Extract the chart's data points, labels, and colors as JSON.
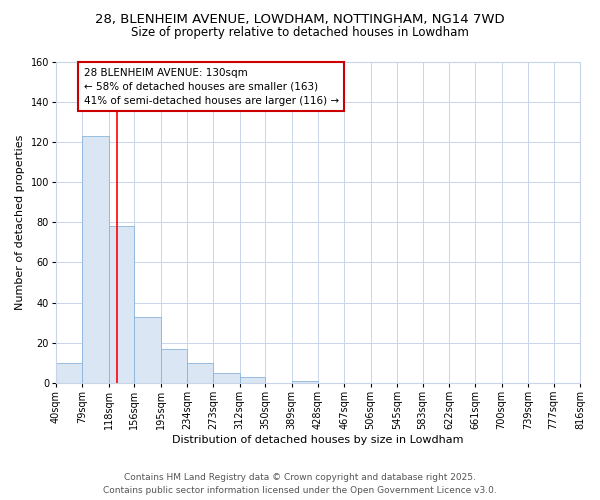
{
  "title_line1": "28, BLENHEIM AVENUE, LOWDHAM, NOTTINGHAM, NG14 7WD",
  "title_line2": "Size of property relative to detached houses in Lowdham",
  "xlabel": "Distribution of detached houses by size in Lowdham",
  "ylabel": "Number of detached properties",
  "bin_edges": [
    40,
    79,
    118,
    156,
    195,
    234,
    273,
    312,
    350,
    389,
    428,
    467,
    506,
    545,
    583,
    622,
    661,
    700,
    739,
    777,
    816
  ],
  "bin_labels": [
    "40sqm",
    "79sqm",
    "118sqm",
    "156sqm",
    "195sqm",
    "234sqm",
    "273sqm",
    "312sqm",
    "350sqm",
    "389sqm",
    "428sqm",
    "467sqm",
    "506sqm",
    "545sqm",
    "583sqm",
    "622sqm",
    "661sqm",
    "700sqm",
    "739sqm",
    "777sqm",
    "816sqm"
  ],
  "counts": [
    10,
    123,
    78,
    33,
    17,
    10,
    5,
    3,
    0,
    1,
    0,
    0,
    0,
    0,
    0,
    0,
    0,
    0,
    0,
    0
  ],
  "bar_color": "#dae6f3",
  "bar_edge_color": "#8ab4d9",
  "vline_x": 130,
  "vline_color": "red",
  "ylim": [
    0,
    160
  ],
  "yticks": [
    0,
    20,
    40,
    60,
    80,
    100,
    120,
    140,
    160
  ],
  "annotation_title": "28 BLENHEIM AVENUE: 130sqm",
  "annotation_line1": "← 58% of detached houses are smaller (163)",
  "annotation_line2": "41% of semi-detached houses are larger (116) →",
  "annotation_box_color": "#ffffff",
  "annotation_box_edge": "#cc0000",
  "footer_line1": "Contains HM Land Registry data © Crown copyright and database right 2025.",
  "footer_line2": "Contains public sector information licensed under the Open Government Licence v3.0.",
  "background_color": "#ffffff",
  "plot_background_color": "#ffffff",
  "grid_color": "#c8d4e8",
  "title_fontsize": 9.5,
  "subtitle_fontsize": 8.5,
  "axis_label_fontsize": 8,
  "tick_fontsize": 7,
  "footer_fontsize": 6.5,
  "annotation_fontsize": 7.5
}
